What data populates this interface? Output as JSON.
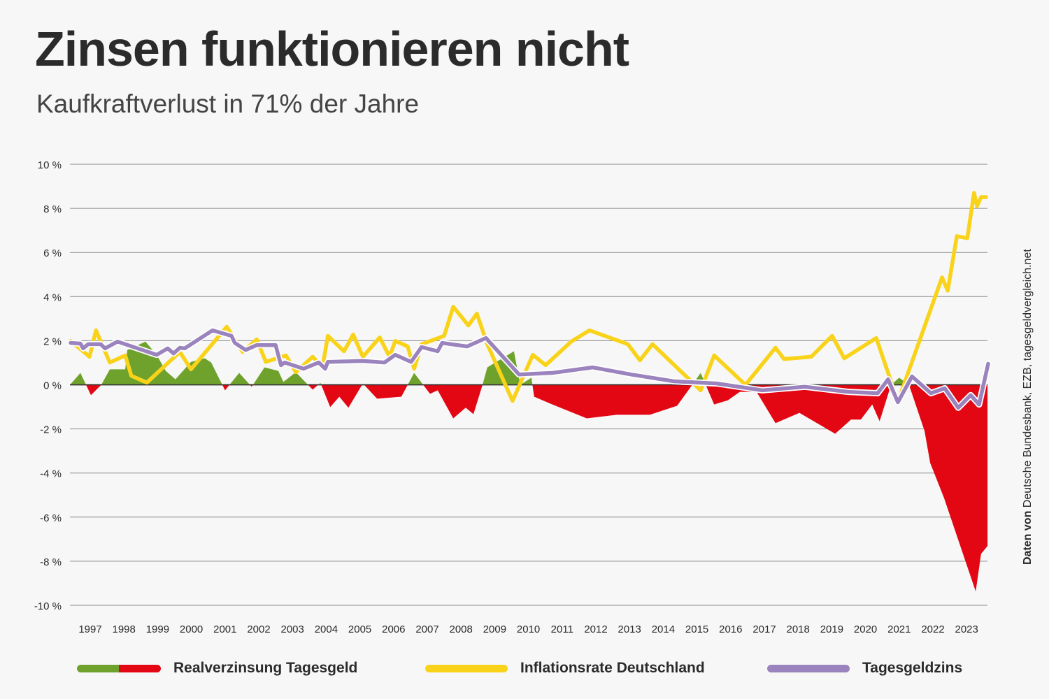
{
  "header": {
    "title": "Zinsen funktionieren nicht",
    "subtitle": "Kaufkraftverlust in 71% der Jahre"
  },
  "source": {
    "prefix": "Daten von",
    "text": "Deutsche Bundesbank, EZB, tagesgeldvergleich.net"
  },
  "colors": {
    "positive": "#6fa22c",
    "negative": "#e30613",
    "inflation": "#f9d31a",
    "interest": "#9b84bd",
    "grid": "#8a8a8a",
    "zero": "#333333"
  },
  "chart_data": {
    "type": "line",
    "title": "Zinsen funktionieren nicht",
    "subtitle": "Kaufkraftverlust in 71% der Jahre",
    "xlim": [
      1996.4,
      2023.65
    ],
    "ylim": [
      -10,
      10
    ],
    "grid": true,
    "legend_placement": "bottom",
    "x_tick_labels": [
      "1997",
      "1998",
      "1999",
      "2000",
      "2001",
      "2002",
      "2003",
      "2004",
      "2005",
      "2006",
      "2007",
      "2008",
      "2009",
      "2010",
      "2011",
      "2012",
      "2013",
      "2014",
      "2015",
      "2016",
      "2017",
      "2018",
      "2019",
      "2020",
      "2021",
      "2022",
      "2023"
    ],
    "y_ticks": [
      10,
      8,
      6,
      4,
      2,
      0,
      -2,
      -4,
      -6,
      -8,
      -10
    ],
    "y_tick_labels": [
      "10 %",
      "8 %",
      "6 %",
      "4 %",
      "2 %",
      "0 %",
      "-2 %",
      "-4 %",
      "-6 %",
      "-8 %",
      "-10 %"
    ],
    "series": [
      {
        "name": "Realverzinsung Tagesgeld",
        "type": "area",
        "points": [
          [
            1996.4,
            0
          ],
          [
            1996.71,
            0.54
          ],
          [
            1997.02,
            -0.47
          ],
          [
            1997.33,
            0
          ],
          [
            1997.58,
            0.7
          ],
          [
            1998.04,
            0.7
          ],
          [
            1998.1,
            1.58
          ],
          [
            1998.64,
            1.96
          ],
          [
            1998.97,
            1.36
          ],
          [
            1999.24,
            0.63
          ],
          [
            1999.53,
            0.25
          ],
          [
            1999.99,
            1.04
          ],
          [
            2000.4,
            1.2
          ],
          [
            2000.59,
            1.01
          ],
          [
            2001.0,
            -0.25
          ],
          [
            2001.42,
            0.54
          ],
          [
            2001.79,
            -0.09
          ],
          [
            2002.17,
            0.79
          ],
          [
            2002.58,
            0.63
          ],
          [
            2002.73,
            0.13
          ],
          [
            2003.1,
            0.57
          ],
          [
            2003.6,
            -0.22
          ],
          [
            2003.83,
            0.09
          ],
          [
            2004.12,
            -1.01
          ],
          [
            2004.39,
            -0.54
          ],
          [
            2004.66,
            -1.04
          ],
          [
            2005.09,
            0.06
          ],
          [
            2005.51,
            -0.63
          ],
          [
            2006.23,
            -0.54
          ],
          [
            2006.61,
            0.54
          ],
          [
            2007.08,
            -0.41
          ],
          [
            2007.31,
            -0.25
          ],
          [
            2007.77,
            -1.52
          ],
          [
            2008.14,
            -1.04
          ],
          [
            2008.37,
            -1.33
          ],
          [
            2008.64,
            0
          ],
          [
            2008.78,
            0.79
          ],
          [
            2009.57,
            1.52
          ],
          [
            2009.76,
            0
          ],
          [
            2010.09,
            0.32
          ],
          [
            2010.17,
            -0.54
          ],
          [
            2010.71,
            -0.89
          ],
          [
            2011.73,
            -1.52
          ],
          [
            2012.62,
            -1.36
          ],
          [
            2013.6,
            -1.36
          ],
          [
            2014.41,
            -0.95
          ],
          [
            2014.86,
            0
          ],
          [
            2015.11,
            0.54
          ],
          [
            2015.26,
            0
          ],
          [
            2015.51,
            -0.89
          ],
          [
            2015.92,
            -0.7
          ],
          [
            2016.27,
            -0.32
          ],
          [
            2016.77,
            -0.32
          ],
          [
            2017.33,
            -1.74
          ],
          [
            2018.04,
            -1.27
          ],
          [
            2019.1,
            -2.22
          ],
          [
            2019.57,
            -1.58
          ],
          [
            2019.86,
            -1.58
          ],
          [
            2020.2,
            -0.89
          ],
          [
            2020.42,
            -1.65
          ],
          [
            2020.76,
            0
          ],
          [
            2021.0,
            0.32
          ],
          [
            2021.29,
            0
          ],
          [
            2021.75,
            -2.09
          ],
          [
            2021.92,
            -3.54
          ],
          [
            2022.33,
            -5.13
          ],
          [
            2023.27,
            -9.37
          ],
          [
            2023.43,
            -7.66
          ],
          [
            2023.62,
            -7.31
          ]
        ]
      },
      {
        "name": "Inflationsrate Deutschland",
        "type": "line",
        "points": [
          [
            1996.42,
            1.99
          ],
          [
            1996.98,
            1.27
          ],
          [
            1997.17,
            2.47
          ],
          [
            1997.58,
            1.01
          ],
          [
            1998.04,
            1.33
          ],
          [
            1998.22,
            0.41
          ],
          [
            1998.68,
            0.1
          ],
          [
            1999.66,
            1.49
          ],
          [
            1999.99,
            0.7
          ],
          [
            2001.05,
            2.63
          ],
          [
            2001.52,
            1.49
          ],
          [
            2001.94,
            2.06
          ],
          [
            2002.21,
            1.04
          ],
          [
            2002.81,
            1.33
          ],
          [
            2003.1,
            0.57
          ],
          [
            2003.6,
            1.27
          ],
          [
            2003.89,
            0.79
          ],
          [
            2004.05,
            2.22
          ],
          [
            2004.53,
            1.52
          ],
          [
            2004.8,
            2.28
          ],
          [
            2005.09,
            1.27
          ],
          [
            2005.59,
            2.15
          ],
          [
            2005.88,
            1.27
          ],
          [
            2006.05,
            1.99
          ],
          [
            2006.42,
            1.74
          ],
          [
            2006.61,
            0.73
          ],
          [
            2006.83,
            1.84
          ],
          [
            2007.5,
            2.22
          ],
          [
            2007.77,
            3.54
          ],
          [
            2008.22,
            2.69
          ],
          [
            2008.47,
            3.23
          ],
          [
            2008.78,
            1.84
          ],
          [
            2009.53,
            -0.73
          ],
          [
            2010.13,
            1.36
          ],
          [
            2010.51,
            0.89
          ],
          [
            2011.27,
            1.96
          ],
          [
            2011.81,
            2.47
          ],
          [
            2012.95,
            1.84
          ],
          [
            2013.31,
            1.11
          ],
          [
            2013.68,
            1.84
          ],
          [
            2015.11,
            -0.25
          ],
          [
            2015.51,
            1.33
          ],
          [
            2016.44,
            0.0
          ],
          [
            2017.33,
            1.68
          ],
          [
            2017.58,
            1.17
          ],
          [
            2018.39,
            1.27
          ],
          [
            2019.01,
            2.22
          ],
          [
            2019.37,
            1.2
          ],
          [
            2020.32,
            2.12
          ],
          [
            2020.96,
            -0.76
          ],
          [
            2022.27,
            4.87
          ],
          [
            2022.44,
            4.27
          ],
          [
            2022.71,
            6.74
          ],
          [
            2023.02,
            6.65
          ],
          [
            2023.22,
            8.7
          ],
          [
            2023.31,
            8.1
          ],
          [
            2023.43,
            8.51
          ],
          [
            2023.58,
            8.51
          ]
        ]
      },
      {
        "name": "Tagesgeldzins",
        "type": "line",
        "points": [
          [
            1996.42,
            1.9
          ],
          [
            1996.71,
            1.87
          ],
          [
            1996.79,
            1.65
          ],
          [
            1996.94,
            1.84
          ],
          [
            1997.31,
            1.84
          ],
          [
            1997.44,
            1.65
          ],
          [
            1997.81,
            1.96
          ],
          [
            1998.97,
            1.36
          ],
          [
            1999.3,
            1.65
          ],
          [
            1999.47,
            1.42
          ],
          [
            1999.66,
            1.68
          ],
          [
            1999.8,
            1.65
          ],
          [
            2000.63,
            2.47
          ],
          [
            2001.19,
            2.22
          ],
          [
            2001.29,
            1.9
          ],
          [
            2001.61,
            1.58
          ],
          [
            2001.94,
            1.8
          ],
          [
            2002.5,
            1.8
          ],
          [
            2002.66,
            0.89
          ],
          [
            2002.77,
            1.01
          ],
          [
            2003.33,
            0.73
          ],
          [
            2003.78,
            1.01
          ],
          [
            2003.97,
            0.73
          ],
          [
            2004.05,
            1.04
          ],
          [
            2005.09,
            1.08
          ],
          [
            2005.73,
            1.01
          ],
          [
            2006.05,
            1.36
          ],
          [
            2006.52,
            1.04
          ],
          [
            2006.83,
            1.71
          ],
          [
            2007.31,
            1.52
          ],
          [
            2007.44,
            1.9
          ],
          [
            2008.18,
            1.74
          ],
          [
            2008.74,
            2.12
          ],
          [
            2009.72,
            0.47
          ],
          [
            2010.71,
            0.54
          ],
          [
            2011.9,
            0.79
          ],
          [
            2013.04,
            0.47
          ],
          [
            2014.32,
            0.16
          ],
          [
            2015.59,
            0.06
          ],
          [
            2016.94,
            -0.25
          ],
          [
            2018.2,
            -0.09
          ],
          [
            2019.49,
            -0.32
          ],
          [
            2020.36,
            -0.38
          ],
          [
            2020.67,
            0.25
          ],
          [
            2020.96,
            -0.79
          ],
          [
            2021.38,
            0.38
          ],
          [
            2021.94,
            -0.38
          ],
          [
            2022.35,
            -0.16
          ],
          [
            2022.75,
            -1.04
          ],
          [
            2023.12,
            -0.47
          ],
          [
            2023.37,
            -0.89
          ],
          [
            2023.64,
            0.95
          ]
        ]
      }
    ]
  }
}
